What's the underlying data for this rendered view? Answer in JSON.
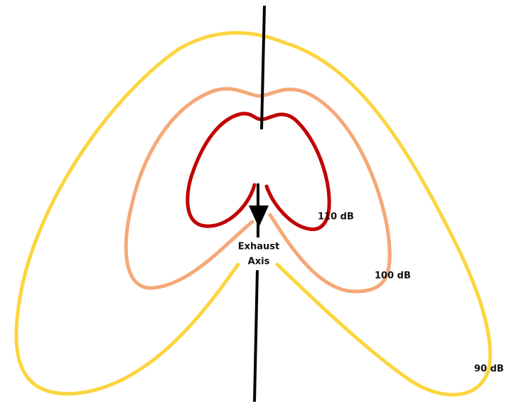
{
  "contours": [
    {
      "label": "110 dB"
    },
    {
      "label": "100 dB"
    },
    {
      "label": "90 dB"
    }
  ],
  "axis_label": [
    "Exhaust",
    "Axis"
  ]
}
